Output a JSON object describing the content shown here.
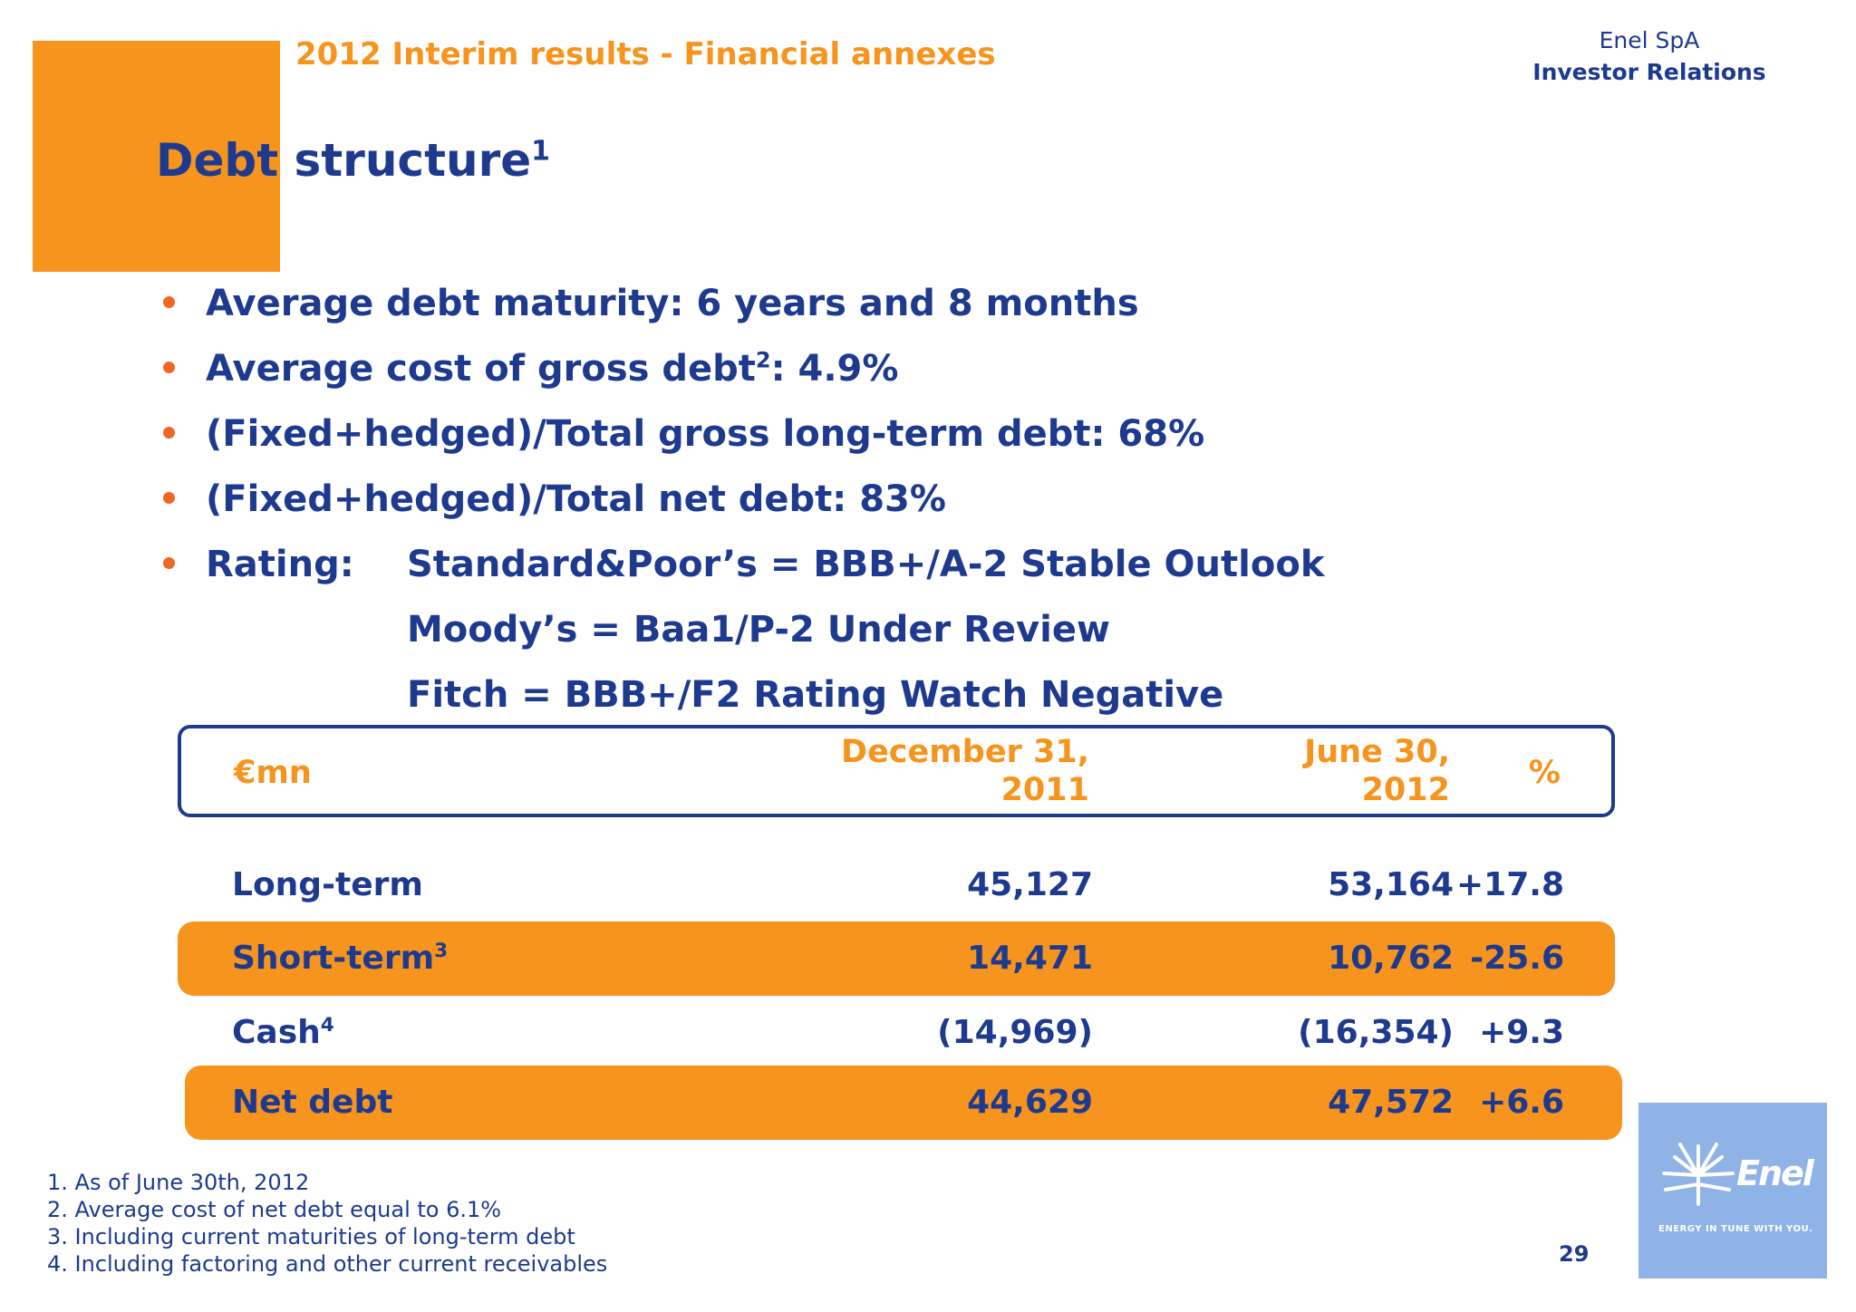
{
  "header": {
    "subtitle": "2012 Interim results - Financial annexes",
    "company": "Enel SpA",
    "department": "Investor Relations"
  },
  "title": {
    "text": "Debt structure",
    "sup": "1"
  },
  "bullets": {
    "maturity": "Average debt maturity: 6 years and 8 months",
    "cost_pre": "Average cost of gross debt",
    "cost_sup": "2",
    "cost_post": ": 4.9%",
    "fixed_gross": "(Fixed+hedged)/Total gross long-term debt: 68%",
    "fixed_net": "(Fixed+hedged)/Total net debt: 83%",
    "rating_label": "Rating:",
    "ratings": [
      "Standard&Poor’s = BBB+/A-2 Stable Outlook",
      "Moody’s = Baa1/P-2 Under Review",
      "Fitch = BBB+/F2 Rating Watch Negative"
    ]
  },
  "table": {
    "headers": {
      "unit": "€mn",
      "col1_line1": "December 31,",
      "col1_line2": "2011",
      "col2_line1": "June 30,",
      "col2_line2": "2012",
      "col3": "%"
    },
    "rows": [
      {
        "label": "Long-term",
        "sup": "",
        "dec2011": "45,127",
        "jun2012": "53,164",
        "pct": "+17.8"
      },
      {
        "label": "Short-term",
        "sup": "3",
        "dec2011": "14,471",
        "jun2012": "10,762",
        "pct": "-25.6"
      },
      {
        "label": "Cash",
        "sup": "4",
        "dec2011": "(14,969)",
        "jun2012": "(16,354)",
        "pct": "+9.3"
      },
      {
        "label": "Net debt",
        "sup": "",
        "dec2011": "44,629",
        "jun2012": "47,572",
        "pct": "+6.6"
      }
    ]
  },
  "footnotes": [
    "1. As of June 30th, 2012",
    "2. Average cost of net debt equal to 6.1%",
    "3. Including current maturities of long-term debt",
    "4. Including factoring and other current receivables"
  ],
  "page_number": "29",
  "logo": {
    "word": "Enel",
    "tagline": "ENERGY IN TUNE WITH YOU."
  },
  "colors": {
    "brand_blue": "#1e3a8f",
    "brand_orange": "#f7941d",
    "bullet_orange": "#f26522"
  }
}
